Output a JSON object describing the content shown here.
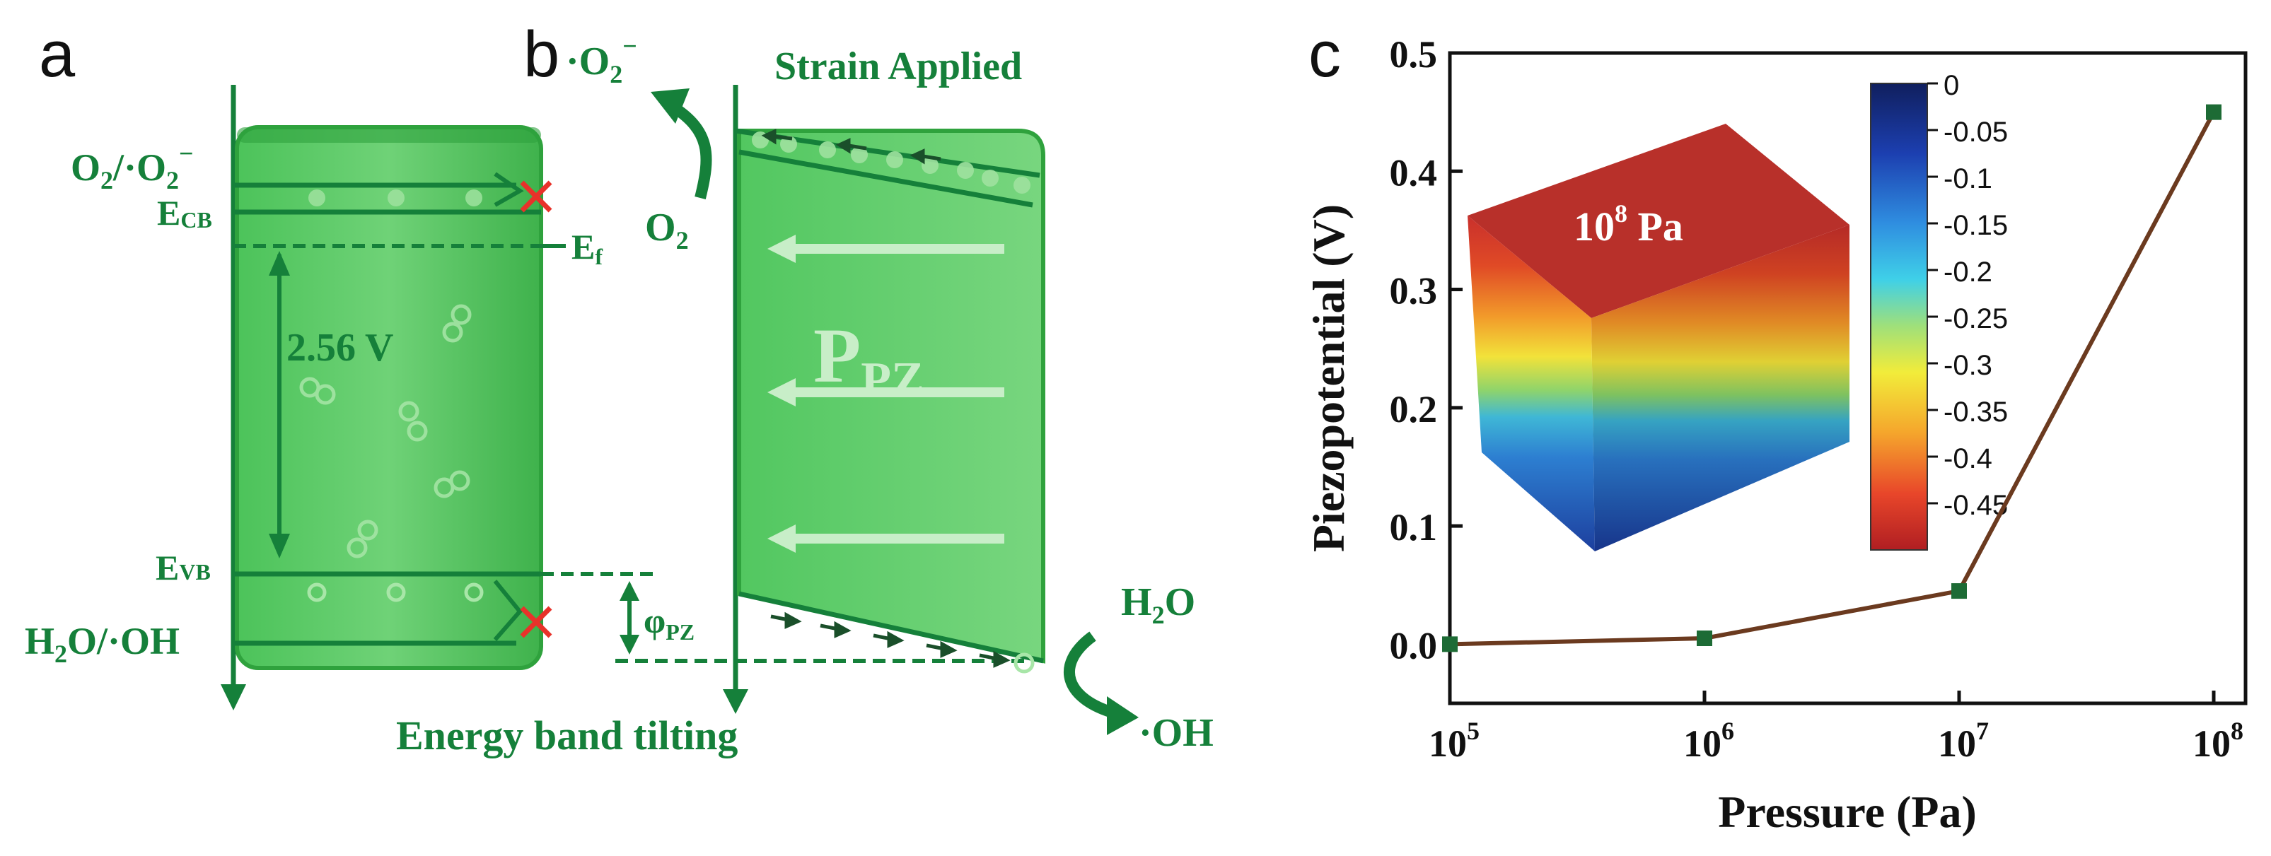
{
  "panel_a": {
    "letter": "a",
    "o2_level": "O",
    "o2_level_sub": "2",
    "o2_level_rest": "/·O",
    "o2_level_sub2": "2",
    "o2_level_sup": "−",
    "ecb_label": "E",
    "ecb_sub": "CB",
    "ef_label": "E",
    "ef_sub": "f",
    "gap_label": "2.56 V",
    "evb_label": "E",
    "evb_sub": "VB",
    "h2o_level": "H",
    "h2o_level_sub": "2",
    "h2o_level_rest": "O/·OH"
  },
  "panel_b": {
    "letter": "b",
    "superoxide": "·O",
    "superoxide_sub": "2",
    "superoxide_sup": "−",
    "o2": "O",
    "o2_sub": "2",
    "strain": "Strain Applied",
    "ppz": "P",
    "ppz_sub": "PZ",
    "phi": "φ",
    "phi_sub": "PZ",
    "h2o": "H",
    "h2o_sub": "2",
    "h2o_rest": "O",
    "oh": "·OH",
    "tilting": "Energy band tilting"
  },
  "panel_c": {
    "letter": "c",
    "inset_label": "10",
    "inset_label_sup": "8",
    "inset_label_unit": " Pa",
    "colorbar_ticks": [
      "0",
      "-0.05",
      "-0.1",
      "-0.15",
      "-0.2",
      "-0.25",
      "-0.3",
      "-0.35",
      "-0.4",
      "-0.45"
    ]
  },
  "colors": {
    "green_dark": "#15803a",
    "green_band": "#3cb44b",
    "green_light": "#79d27e",
    "marker": "#1d6b35",
    "line": "#6b3a1f",
    "red_x": "#e8322a"
  },
  "chart_data": {
    "type": "line",
    "title": "",
    "xlabel": "Pressure (Pa)",
    "ylabel": "Piezopotential (V)",
    "xscale": "log",
    "xlim": [
      100000,
      100000000
    ],
    "ylim": [
      -0.05,
      0.5
    ],
    "x": [
      100000,
      1000000,
      10000000,
      100000000
    ],
    "y": [
      0.0,
      0.005,
      0.045,
      0.45
    ],
    "x_ticks": [
      {
        "value": 100000,
        "base": "10",
        "exp": "5"
      },
      {
        "value": 1000000,
        "base": "10",
        "exp": "6"
      },
      {
        "value": 10000000,
        "base": "10",
        "exp": "7"
      },
      {
        "value": 100000000,
        "base": "10",
        "exp": "8"
      }
    ],
    "y_ticks": [
      {
        "value": 0.0,
        "label": "0.0"
      },
      {
        "value": 0.1,
        "label": "0.1"
      },
      {
        "value": 0.2,
        "label": "0.2"
      },
      {
        "value": 0.3,
        "label": "0.3"
      },
      {
        "value": 0.4,
        "label": "0.4"
      },
      {
        "value": 0.5,
        "label": "0.5"
      }
    ],
    "grid": false
  }
}
